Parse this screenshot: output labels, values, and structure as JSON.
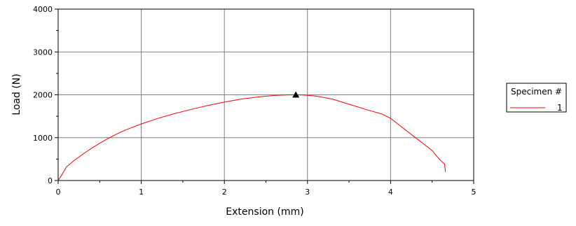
{
  "chart_data": {
    "type": "line",
    "xlabel": "Extension (mm)",
    "ylabel": "Load (N)",
    "xlim": [
      0,
      5
    ],
    "ylim": [
      0,
      4000
    ],
    "x_ticks": [
      "0",
      "1",
      "2",
      "3",
      "4",
      "5"
    ],
    "y_ticks": [
      "0",
      "1000",
      "2000",
      "3000",
      "4000"
    ],
    "grid": true,
    "legend": {
      "title": "Specimen #",
      "placement": "right"
    },
    "series": [
      {
        "name": "1",
        "color": "#ff0000",
        "x": [
          0,
          0.05,
          0.1,
          0.2,
          0.3,
          0.4,
          0.5,
          0.6,
          0.7,
          0.8,
          1.0,
          1.2,
          1.4,
          1.6,
          1.8,
          2.0,
          2.2,
          2.4,
          2.6,
          2.8,
          2.95,
          3.1,
          3.3,
          3.5,
          3.7,
          3.9,
          4.0,
          4.1,
          4.2,
          4.3,
          4.4,
          4.5,
          4.55,
          4.6,
          4.65,
          4.66
        ],
        "y": [
          0,
          150,
          320,
          480,
          620,
          750,
          870,
          980,
          1080,
          1170,
          1320,
          1450,
          1560,
          1660,
          1750,
          1830,
          1900,
          1950,
          1985,
          2000,
          1995,
          1970,
          1900,
          1780,
          1660,
          1550,
          1450,
          1300,
          1150,
          1000,
          850,
          700,
          580,
          470,
          380,
          200
        ]
      }
    ],
    "markers": [
      {
        "shape": "triangle",
        "color": "#000000",
        "x": 2.86,
        "y": 2000
      }
    ]
  }
}
